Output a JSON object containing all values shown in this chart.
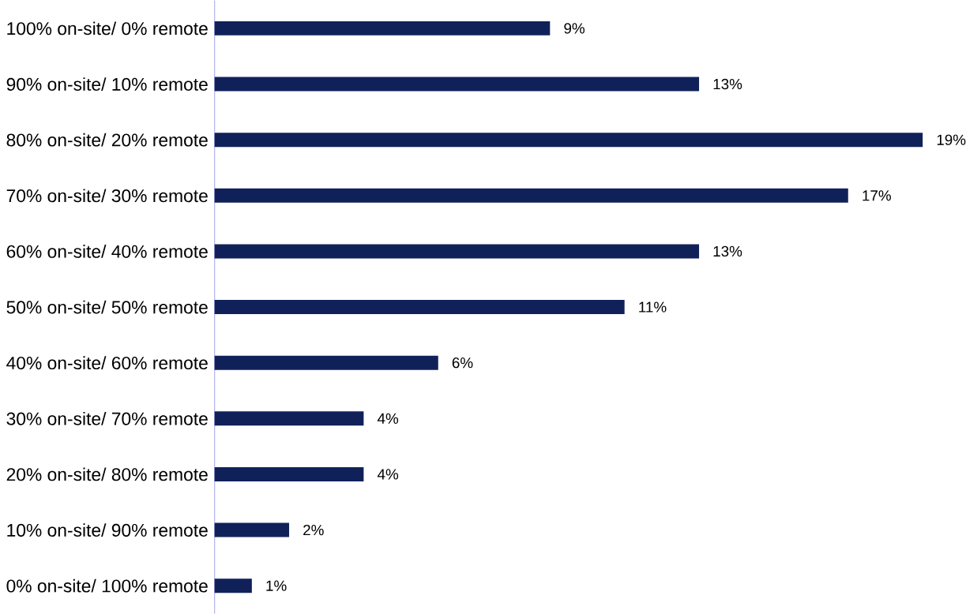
{
  "chart_data": {
    "type": "bar",
    "orientation": "horizontal",
    "categories": [
      "100% on-site/ 0% remote",
      "90% on-site/ 10% remote",
      "80% on-site/ 20% remote",
      "70% on-site/ 30% remote",
      "60% on-site/ 40% remote",
      "50% on-site/ 50% remote",
      "40% on-site/ 60% remote",
      "30% on-site/ 70% remote",
      "20% on-site/ 80% remote",
      "10% on-site/ 90% remote",
      "0% on-site/ 100% remote"
    ],
    "values": [
      9,
      13,
      19,
      17,
      13,
      11,
      6,
      4,
      4,
      2,
      1
    ],
    "value_labels": [
      "9%",
      "13%",
      "19%",
      "17%",
      "13%",
      "11%",
      "6%",
      "4%",
      "4%",
      "2%",
      "1%"
    ],
    "color": "#10215a"
  }
}
